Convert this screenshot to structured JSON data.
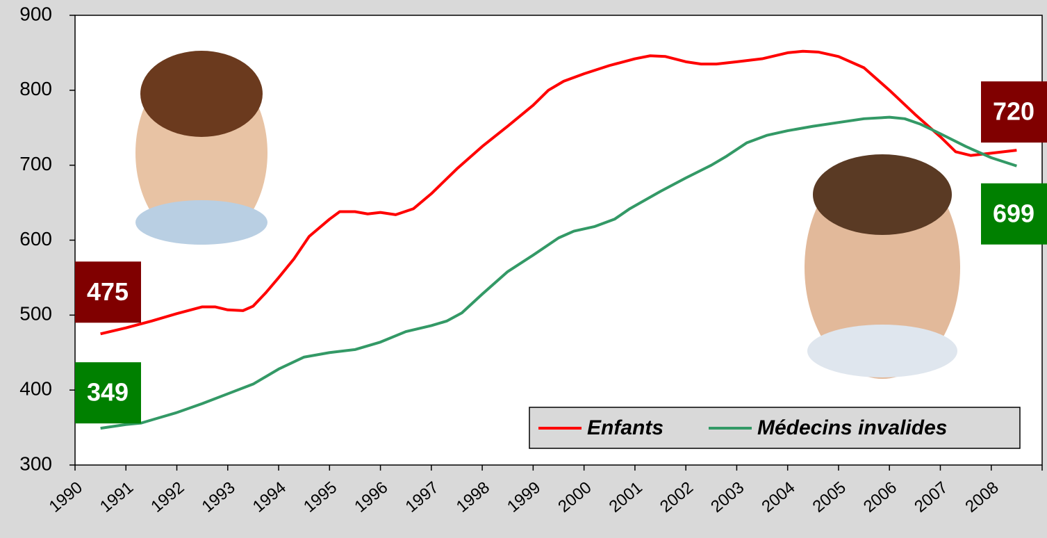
{
  "chart_data": {
    "type": "line",
    "xlim": [
      1990,
      2009
    ],
    "xticks": [
      1990,
      1991,
      1992,
      1993,
      1994,
      1995,
      1996,
      1997,
      1998,
      1999,
      2000,
      2001,
      2002,
      2003,
      2004,
      2005,
      2006,
      2007,
      2008
    ],
    "ylim": [
      300,
      900
    ],
    "yticks": [
      300,
      400,
      500,
      600,
      700,
      800,
      900
    ],
    "grid": true,
    "legend": "bottom-right",
    "series": [
      {
        "name": "Enfants",
        "color": "#ff0000",
        "x": [
          1990.5,
          1991,
          1991.5,
          1992,
          1992.5,
          1992.75,
          1993,
          1993.3,
          1993.5,
          1993.75,
          1994,
          1994.3,
          1994.6,
          1995,
          1995.2,
          1995.5,
          1995.75,
          1996,
          1996.3,
          1996.65,
          1997,
          1997.5,
          1998,
          1998.5,
          1999,
          1999.3,
          1999.6,
          2000,
          2000.5,
          2001,
          2001.3,
          2001.6,
          2002,
          2002.3,
          2002.6,
          2003,
          2003.5,
          2004,
          2004.3,
          2004.6,
          2005,
          2005.5,
          2006,
          2006.5,
          2007,
          2007.3,
          2007.6,
          2008,
          2008.5
        ],
        "values": [
          475,
          483,
          492,
          502,
          511,
          511,
          507,
          506,
          512,
          530,
          550,
          575,
          605,
          628,
          638,
          638,
          635,
          637,
          634,
          642,
          662,
          695,
          725,
          752,
          780,
          800,
          812,
          822,
          833,
          842,
          846,
          845,
          838,
          835,
          835,
          838,
          842,
          850,
          852,
          851,
          845,
          830,
          800,
          768,
          738,
          718,
          713,
          716,
          720
        ]
      },
      {
        "name": "Médecins invalides",
        "color": "#339966",
        "x": [
          1990.5,
          1991,
          1991.3,
          1991.6,
          1992,
          1992.5,
          1993,
          1993.5,
          1994,
          1994.5,
          1995,
          1995.5,
          1996,
          1996.5,
          1997,
          1997.3,
          1997.6,
          1998,
          1998.5,
          1999,
          1999.5,
          1999.8,
          2000.2,
          2000.6,
          2000.9,
          2001.5,
          2002,
          2002.5,
          2002.8,
          2003.2,
          2003.6,
          2004,
          2004.5,
          2005,
          2005.5,
          2006,
          2006.3,
          2006.6,
          2007,
          2007.5,
          2008,
          2008.5
        ],
        "values": [
          349,
          354,
          356,
          362,
          370,
          382,
          395,
          408,
          428,
          444,
          450,
          454,
          464,
          478,
          486,
          492,
          503,
          528,
          558,
          580,
          603,
          612,
          618,
          628,
          642,
          665,
          683,
          700,
          712,
          730,
          740,
          746,
          752,
          757,
          762,
          764,
          762,
          755,
          742,
          725,
          710,
          699
        ]
      }
    ]
  }
}
